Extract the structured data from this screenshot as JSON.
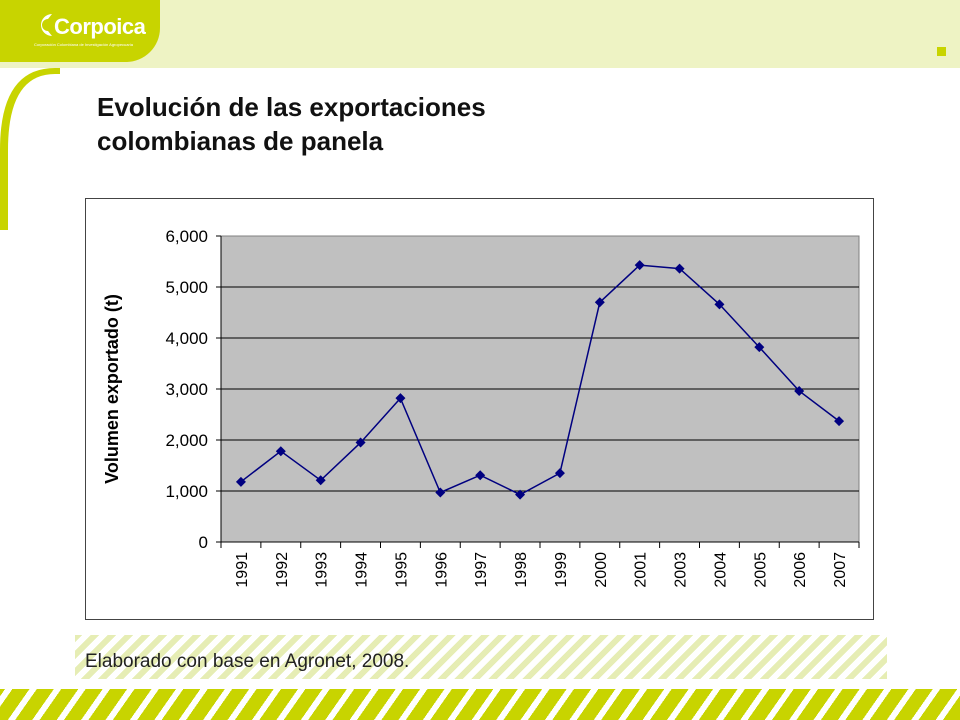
{
  "brand": {
    "name": "Corpoica",
    "tagline": "Corporación Colombiana de Investigación Agropecuaria",
    "color": "#c8d400"
  },
  "slide": {
    "title_line1": "Evolución de las exportaciones",
    "title_line2": "colombianas de panela",
    "source": "Elaborado con base en Agronet, 2008."
  },
  "chart_data": {
    "type": "line",
    "title": "",
    "xlabel": "",
    "ylabel": "Volumen exportado (t)",
    "categories": [
      "1991",
      "1992",
      "1993",
      "1994",
      "1995",
      "1996",
      "1997",
      "1998",
      "1999",
      "2000",
      "2001",
      "2003",
      "2004",
      "2005",
      "2006",
      "2007"
    ],
    "values": [
      1180,
      1780,
      1210,
      1950,
      2820,
      970,
      1310,
      930,
      1350,
      4700,
      5430,
      5360,
      4660,
      3820,
      2960,
      2370
    ],
    "ylim": [
      0,
      6000
    ],
    "yticks": [
      "0",
      "1,000",
      "2,000",
      "3,000",
      "4,000",
      "5,000",
      "6,000"
    ],
    "grid": true,
    "legend": "none",
    "plot_background": "#c0c0c0",
    "line_color": "#000080"
  }
}
